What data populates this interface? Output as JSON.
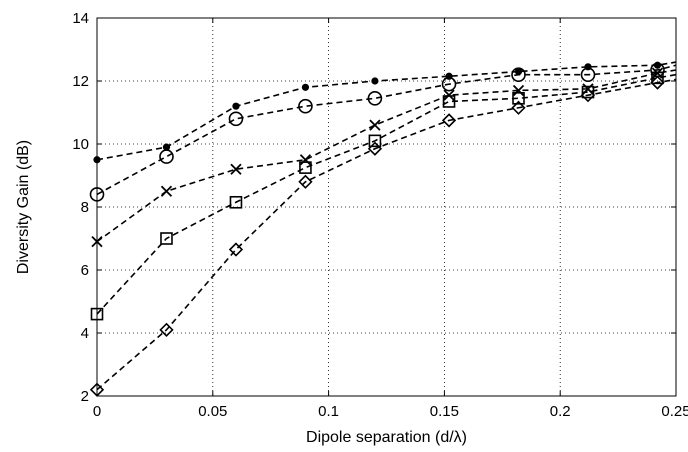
{
  "chart_data": {
    "type": "line",
    "title": "",
    "xlabel": "Dipole separation (d/λ)",
    "ylabel": "Diversity Gain (dB)",
    "xlim": [
      0,
      0.25
    ],
    "ylim": [
      2,
      14
    ],
    "grid": true,
    "legend": "none",
    "xticks": [
      0,
      0.05,
      0.1,
      0.15,
      0.2,
      0.25
    ],
    "xtick_labels": [
      "0",
      "0.05",
      "0.1",
      "0.15",
      "0.2",
      "0.25"
    ],
    "yticks": [
      2,
      4,
      6,
      8,
      10,
      12,
      14
    ],
    "ytick_labels": [
      "2",
      "4",
      "6",
      "8",
      "10",
      "12",
      "14"
    ],
    "x": [
      0,
      0.03,
      0.06,
      0.09,
      0.12,
      0.152,
      0.182,
      0.212,
      0.242
    ],
    "x_end": 0.25,
    "line_color": "#000000",
    "series": [
      {
        "marker": "dot",
        "values": [
          9.5,
          9.9,
          11.2,
          11.8,
          12.0,
          12.15,
          12.3,
          12.45,
          12.5
        ],
        "end": 12.6
      },
      {
        "marker": "circle",
        "values": [
          8.4,
          9.6,
          10.8,
          11.2,
          11.45,
          11.9,
          12.2,
          12.2,
          12.35
        ],
        "end": 12.5
      },
      {
        "marker": "cross",
        "values": [
          6.9,
          8.5,
          9.2,
          9.5,
          10.6,
          11.55,
          11.7,
          11.75,
          12.25
        ],
        "end": 12.35
      },
      {
        "marker": "square",
        "values": [
          4.6,
          7.0,
          8.15,
          9.25,
          10.1,
          11.35,
          11.45,
          11.65,
          12.1
        ],
        "end": 12.2
      },
      {
        "marker": "diamond",
        "values": [
          2.2,
          4.1,
          6.65,
          8.8,
          9.85,
          10.75,
          11.15,
          11.55,
          11.95
        ],
        "end": 12.05
      }
    ]
  }
}
